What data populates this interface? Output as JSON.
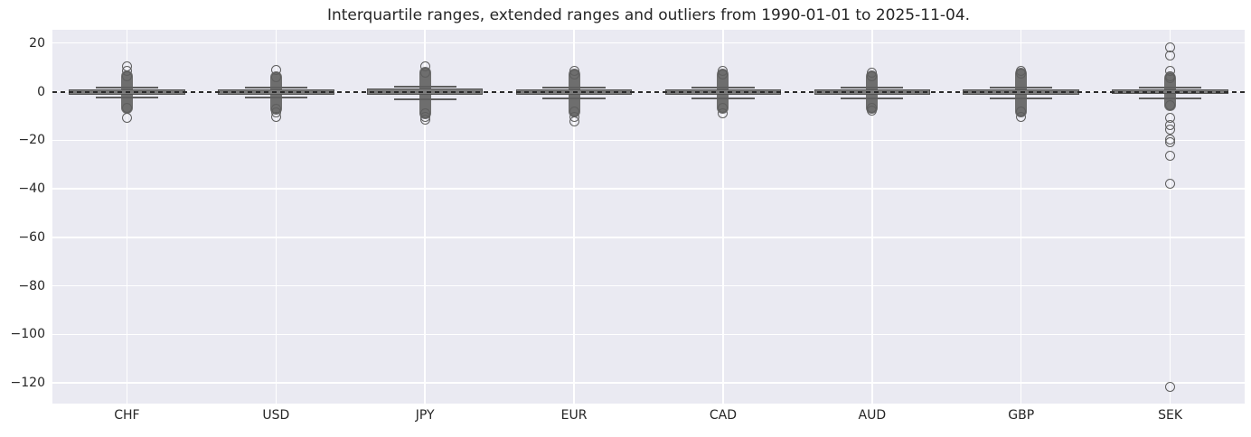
{
  "chart_data": {
    "type": "boxplot",
    "title": "Interquartile ranges, extended ranges and outliers from 1990-01-01 to 2025-11-04.",
    "categories": [
      "CHF",
      "USD",
      "JPY",
      "EUR",
      "CAD",
      "AUD",
      "GBP",
      "SEK"
    ],
    "ylim": [
      -128.5,
      25.5
    ],
    "yticks": [
      20,
      0,
      -20,
      -40,
      -60,
      -80,
      -100,
      -120
    ],
    "grid": true,
    "legend": "none",
    "background_color": "#eaeaf2",
    "grid_color": "#ffffff",
    "text_color": "#262626",
    "reference_line": {
      "y": 0,
      "style": "dashed",
      "color": "#2b2b2b"
    },
    "colors": {
      "box": "#7a7a7a",
      "box_edge": "#545454",
      "cap": "#5f5f5f",
      "outlier_edge": "#5e5e5e"
    },
    "series": [
      {
        "label": "CHF",
        "median": 0,
        "q1": -1.1,
        "q3": 1.1,
        "ext_high": 1.6,
        "ext_low": -2.4,
        "dense_outlier_range": [
          -6.5,
          6.5
        ],
        "outliers": [
          10.4,
          8.6,
          -10.7
        ]
      },
      {
        "label": "USD",
        "median": 0,
        "q1": -1.1,
        "q3": 1.1,
        "ext_high": 1.6,
        "ext_low": -2.4,
        "dense_outlier_range": [
          -7.0,
          6.0
        ],
        "outliers": [
          8.9,
          -8.5,
          -10.4
        ]
      },
      {
        "label": "JPY",
        "median": 0,
        "q1": -1.2,
        "q3": 1.2,
        "ext_high": 2.2,
        "ext_low": -3.0,
        "dense_outlier_range": [
          -9.0,
          8.0
        ],
        "outliers": [
          10.4,
          -10.4,
          -11.5
        ]
      },
      {
        "label": "EUR",
        "median": 0,
        "q1": -1.1,
        "q3": 1.1,
        "ext_high": 1.8,
        "ext_low": -2.6,
        "dense_outlier_range": [
          -8.0,
          7.0
        ],
        "outliers": [
          8.5,
          -10.4,
          -12.2
        ]
      },
      {
        "label": "CAD",
        "median": 0,
        "q1": -1.1,
        "q3": 1.1,
        "ext_high": 1.8,
        "ext_low": -2.6,
        "dense_outlier_range": [
          -6.5,
          7.0
        ],
        "outliers": [
          8.5,
          -8.9
        ]
      },
      {
        "label": "AUD",
        "median": 0,
        "q1": -1.1,
        "q3": 1.1,
        "ext_high": 1.8,
        "ext_low": -2.6,
        "dense_outlier_range": [
          -6.5,
          6.5
        ],
        "outliers": [
          7.8,
          -7.8
        ]
      },
      {
        "label": "GBP",
        "median": 0,
        "q1": -1.1,
        "q3": 1.1,
        "ext_high": 1.8,
        "ext_low": -2.6,
        "dense_outlier_range": [
          -8.0,
          7.5
        ],
        "outliers": [
          8.5,
          -10.4
        ]
      },
      {
        "label": "SEK",
        "median": 0,
        "q1": -1.0,
        "q3": 1.0,
        "ext_high": 1.8,
        "ext_low": -2.6,
        "dense_outlier_range": [
          -5.5,
          5.5
        ],
        "outliers": [
          18.1,
          14.8,
          8.5,
          6.3,
          -10.7,
          -13.7,
          -15.6,
          -19.6,
          -20.7,
          -26.3,
          -37.8,
          -121.5
        ]
      }
    ]
  }
}
